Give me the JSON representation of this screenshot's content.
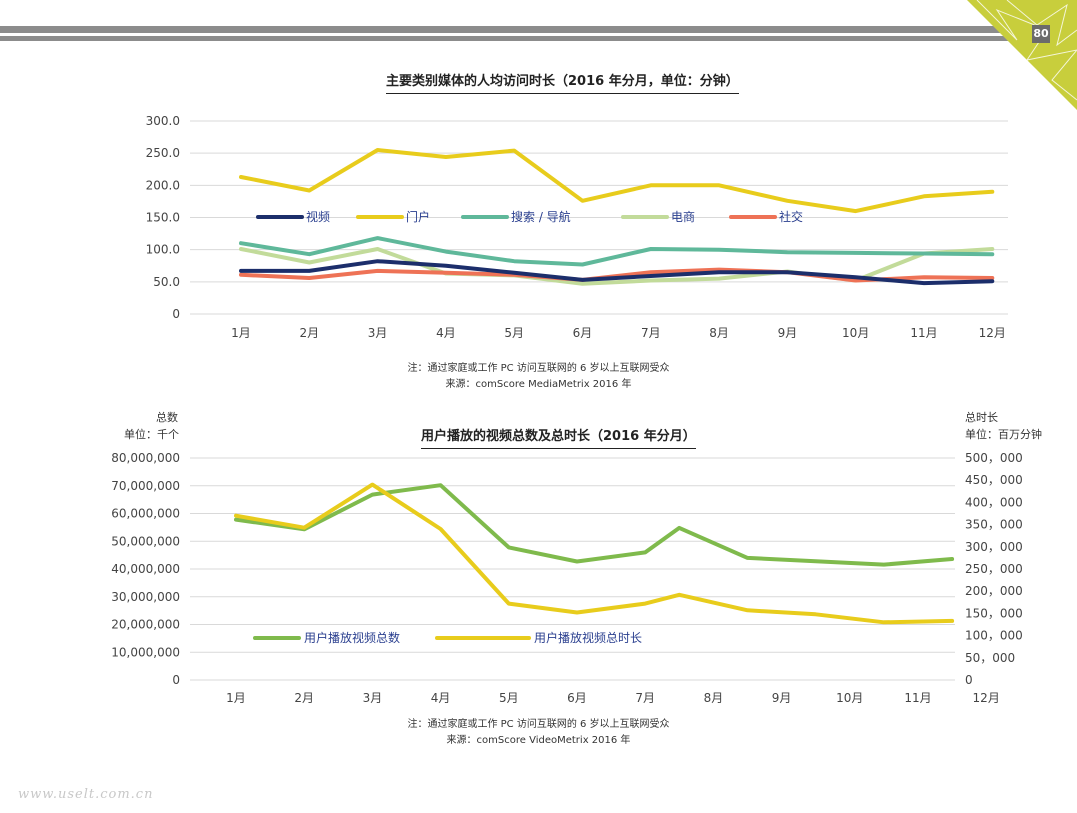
{
  "page_number": "80",
  "watermark": "www.uselt.com.cn",
  "colors": {
    "accent_corner": "#c8ce3c",
    "bar_gray": "#8c8c8c"
  },
  "chart_data": [
    {
      "type": "line",
      "title": "主要类别媒体的人均访问时长（2016 年分月，单位：分钟）",
      "categories": [
        "1月",
        "2月",
        "3月",
        "4月",
        "5月",
        "6月",
        "7月",
        "8月",
        "9月",
        "10月",
        "11月",
        "12月"
      ],
      "y_ticks": [
        "0",
        "50.0",
        "100.0",
        "150.0",
        "200.0",
        "250.0",
        "300.0"
      ],
      "ylim": [
        0,
        300
      ],
      "grid": true,
      "legend_position": "inside-upper-left",
      "series": [
        {
          "name": "视频",
          "color": "#1c2e6b",
          "values": [
            67,
            67,
            82,
            75,
            64,
            53,
            59,
            65,
            65,
            57,
            48,
            51
          ]
        },
        {
          "name": "门户",
          "color": "#e8cc1c",
          "values": [
            213,
            192,
            255,
            244,
            254,
            176,
            200,
            200,
            176,
            160,
            183,
            190
          ]
        },
        {
          "name": "搜索 / 导航",
          "color": "#5fb89a",
          "values": [
            110,
            93,
            118,
            97,
            82,
            77,
            101,
            100,
            96,
            95,
            94,
            93
          ]
        },
        {
          "name": "电商",
          "color": "#c2db9a",
          "values": [
            101,
            80,
            101,
            63,
            60,
            47,
            52,
            55,
            66,
            52,
            94,
            101
          ]
        },
        {
          "name": "社交",
          "color": "#ee7256",
          "values": [
            61,
            56,
            67,
            64,
            61,
            53,
            65,
            69,
            65,
            52,
            57,
            56
          ]
        }
      ],
      "notes": [
        "注：通过家庭或工作 PC 访问互联网的 6 岁以上互联网受众",
        "来源：comScore MediaMetrix 2016 年"
      ]
    },
    {
      "type": "line",
      "title": "用户播放的视频总数及总时长（2016 年分月）",
      "categories": [
        "1月",
        "2月",
        "3月",
        "4月",
        "5月",
        "6月",
        "7月",
        "8月",
        "9月",
        "10月",
        "11月",
        "12月"
      ],
      "left_axis_title": "总数",
      "left_axis_unit": "单位：千个",
      "right_axis_title": "总时长",
      "right_axis_unit": "单位：百万分钟",
      "y_left_ticks": [
        "0",
        "10,000,000",
        "20,000,000",
        "30,000,000",
        "40,000,000",
        "50,000,000",
        "60,000,000",
        "70,000,000",
        "80,000,000"
      ],
      "y_right_ticks": [
        "0",
        "50，000",
        "100，000",
        "150，000",
        "200，000",
        "250，000",
        "300，000",
        "350，000",
        "400，000",
        "450，000",
        "500，000"
      ],
      "ylim_left": [
        0,
        80000000
      ],
      "ylim_right": [
        0,
        500000
      ],
      "grid": true,
      "legend_position": "inside-lower-left",
      "series": [
        {
          "name": "用户播放视频总数",
          "axis": "left",
          "color": "#7fba4c",
          "x": [
            1,
            2,
            3,
            4,
            5,
            6,
            7,
            7.5,
            8.5,
            9.5,
            10.5,
            11.5
          ],
          "values": [
            57800000,
            54300000,
            66800000,
            70200000,
            47800000,
            42700000,
            46000000,
            54800000,
            44000000,
            42800000,
            41600000,
            43600000
          ]
        },
        {
          "name": "用户播放视频总时长",
          "axis": "right",
          "color": "#e8cc1c",
          "x": [
            1,
            2,
            3,
            4,
            5,
            6,
            7,
            7.5,
            8.5,
            9.5,
            10.5,
            11.5
          ],
          "values": [
            370000,
            343000,
            440000,
            340000,
            172000,
            152000,
            172000,
            192000,
            157000,
            148000,
            130000,
            133000
          ]
        }
      ],
      "notes": [
        "注：通过家庭或工作 PC 访问互联网的 6 岁以上互联网受众",
        "来源：comScore VideoMetrix 2016 年"
      ]
    }
  ]
}
